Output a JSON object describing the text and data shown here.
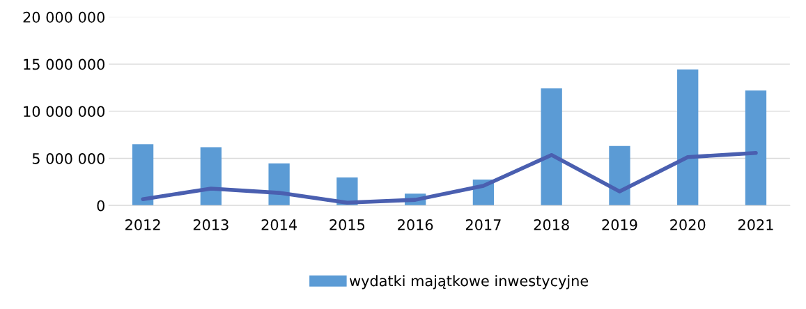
{
  "chart_data": {
    "type": "bar",
    "categories": [
      "2012",
      "2013",
      "2014",
      "2015",
      "2016",
      "2017",
      "2018",
      "2019",
      "2020",
      "2021"
    ],
    "series": [
      {
        "name": "wydatki majątkowe inwestycyjne",
        "color": "#5b9bd5",
        "values": [
          6500000,
          6180000,
          4460000,
          2980000,
          1260000,
          2750000,
          12430000,
          6320000,
          14430000,
          12200000
        ]
      },
      {
        "type": "line",
        "color": "#4a5fb0",
        "values": [
          670000,
          1790000,
          1340000,
          300000,
          600000,
          2080000,
          5360000,
          1490000,
          5130000,
          5580000
        ]
      }
    ],
    "ylim": [
      0,
      20000000
    ],
    "yticks": [
      {
        "value": 0,
        "label": "0"
      },
      {
        "value": 5000000,
        "label": "5 000 000"
      },
      {
        "value": 10000000,
        "label": "10 000 000"
      },
      {
        "value": 15000000,
        "label": "15 000 000"
      },
      {
        "value": 20000000,
        "label": "20 000 000"
      }
    ],
    "grid": "y",
    "legend": "bottom",
    "line_style": "solid",
    "marker": "none"
  }
}
